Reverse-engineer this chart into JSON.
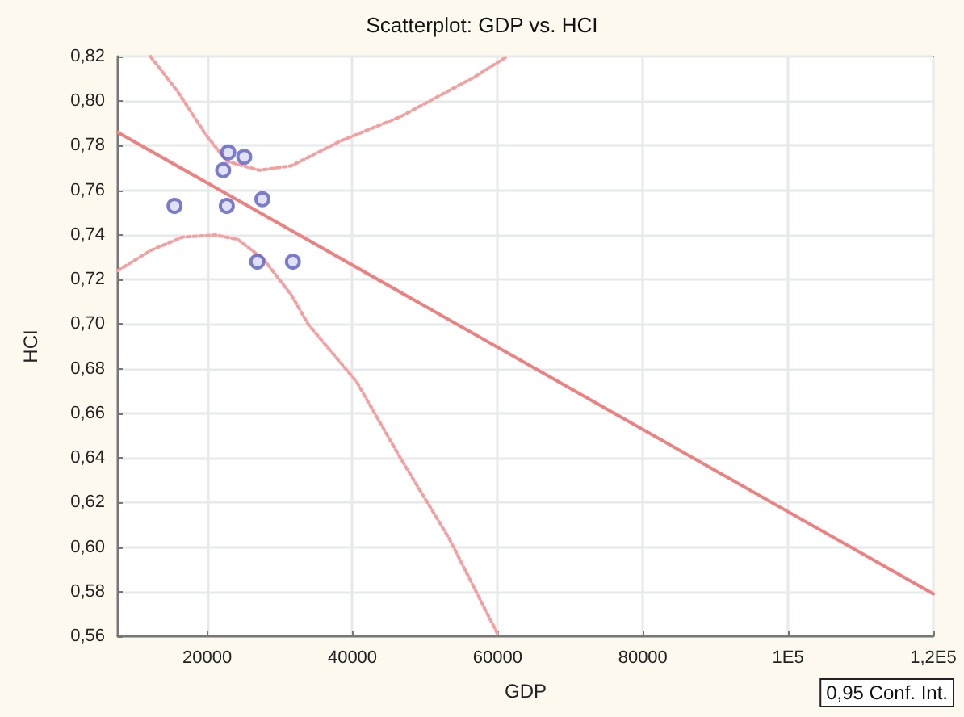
{
  "chart_data": {
    "type": "scatter",
    "title": "Scatterplot: GDP vs. HCI",
    "xlabel": "GDP",
    "ylabel": "HCI",
    "xlim": [
      7700,
      120000
    ],
    "xticks": [
      20000,
      40000,
      60000,
      80000,
      {
        "value": 100000,
        "label": "1E5"
      },
      {
        "value": 120000,
        "label": "1,2E5"
      }
    ],
    "ylim": [
      0.56,
      0.82
    ],
    "yticks": [
      {
        "value": 0.56,
        "label": "0,56"
      },
      {
        "value": 0.58,
        "label": "0,58"
      },
      {
        "value": 0.6,
        "label": "0,60"
      },
      {
        "value": 0.62,
        "label": "0,62"
      },
      {
        "value": 0.64,
        "label": "0,64"
      },
      {
        "value": 0.66,
        "label": "0,66"
      },
      {
        "value": 0.68,
        "label": "0,68"
      },
      {
        "value": 0.7,
        "label": "0,70"
      },
      {
        "value": 0.72,
        "label": "0,72"
      },
      {
        "value": 0.74,
        "label": "0,74"
      },
      {
        "value": 0.76,
        "label": "0,76"
      },
      {
        "value": 0.78,
        "label": "0,78"
      },
      {
        "value": 0.8,
        "label": "0,80"
      },
      {
        "value": 0.82,
        "label": "0,82"
      }
    ],
    "grid": true,
    "annotations": [
      "0,95 Conf. Int."
    ],
    "series": [
      {
        "color": "#5b5fc2",
        "marker": "circle",
        "x": [
          15500,
          22900,
          25100,
          22200,
          22700,
          27600,
          26900,
          31800
        ],
        "values": [
          0.753,
          0.777,
          0.775,
          0.769,
          0.753,
          0.756,
          0.728,
          0.728
        ]
      },
      {
        "type": "line",
        "color": "#f08080",
        "marker": "none",
        "line_style": "solid",
        "x": [
          7700,
          120000
        ],
        "values": [
          0.786,
          0.579
        ]
      },
      {
        "type": "line",
        "color": "#f4a0a0",
        "marker": "none",
        "line_style": "dotted",
        "x": [
          12200,
          16000,
          19800,
          22700,
          27200,
          31600,
          38300,
          46600,
          56900,
          61300
        ],
        "values": [
          0.82,
          0.804,
          0.785,
          0.773,
          0.769,
          0.771,
          0.782,
          0.793,
          0.811,
          0.82
        ]
      },
      {
        "type": "line",
        "color": "#f4a0a0",
        "marker": "none",
        "line_style": "dotted",
        "x": [
          7700,
          12200,
          16600,
          21100,
          24200,
          27800,
          31600,
          33900,
          40600,
          46600,
          53300,
          60000
        ],
        "values": [
          0.724,
          0.733,
          0.739,
          0.74,
          0.738,
          0.729,
          0.713,
          0.7,
          0.674,
          0.64,
          0.604,
          0.561
        ]
      }
    ]
  }
}
